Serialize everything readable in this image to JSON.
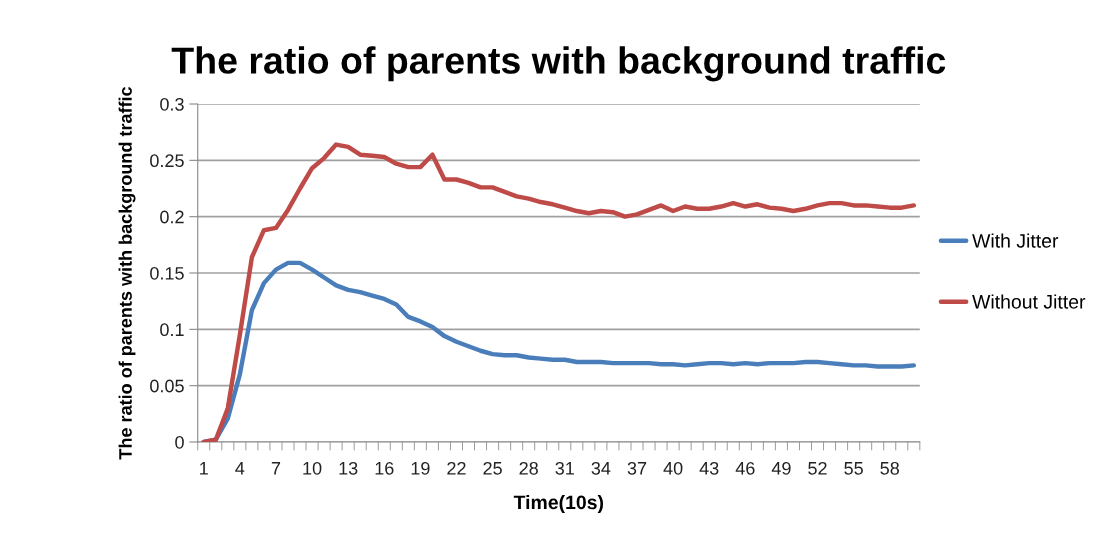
{
  "chart_data": {
    "type": "line",
    "title": "The ratio of parents with background traffic",
    "xlabel": "Time(10s)",
    "ylabel": "The ratio of parents with background traffic",
    "categories": [
      "1",
      null,
      null,
      "4",
      null,
      null,
      "7",
      null,
      null,
      "10",
      null,
      null,
      "13",
      null,
      null,
      "16",
      null,
      null,
      "19",
      null,
      null,
      "22",
      null,
      null,
      "25",
      null,
      null,
      "28",
      null,
      null,
      "31",
      null,
      null,
      "34",
      null,
      null,
      "37",
      null,
      null,
      "40",
      null,
      null,
      "43",
      null,
      null,
      "46",
      null,
      null,
      "49",
      null,
      null,
      "52",
      null,
      null,
      "55",
      null,
      null,
      "58",
      null,
      null
    ],
    "series": [
      {
        "name": "With Jitter",
        "color": "#4a7ebb",
        "values": [
          0,
          0.002,
          0.021,
          0.06,
          0.117,
          0.141,
          0.153,
          0.159,
          0.159,
          0.153,
          0.146,
          0.139,
          0.135,
          0.133,
          0.13,
          0.127,
          0.122,
          0.111,
          0.107,
          0.102,
          0.094,
          0.089,
          0.085,
          0.081,
          0.078,
          0.077,
          0.077,
          0.075,
          0.074,
          0.073,
          0.073,
          0.071,
          0.071,
          0.071,
          0.07,
          0.07,
          0.07,
          0.07,
          0.069,
          0.069,
          0.068,
          0.069,
          0.07,
          0.07,
          0.069,
          0.07,
          0.069,
          0.07,
          0.07,
          0.07,
          0.071,
          0.071,
          0.07,
          0.069,
          0.068,
          0.068,
          0.067,
          0.067,
          0.067,
          0.068
        ]
      },
      {
        "name": "Without Jitter",
        "color": "#be4b48",
        "values": [
          0,
          0.002,
          0.03,
          0.095,
          0.164,
          0.188,
          0.19,
          0.206,
          0.225,
          0.243,
          0.252,
          0.264,
          0.262,
          0.255,
          0.254,
          0.253,
          0.247,
          0.244,
          0.244,
          0.255,
          0.233,
          0.233,
          0.23,
          0.226,
          0.226,
          0.222,
          0.218,
          0.216,
          0.213,
          0.211,
          0.208,
          0.205,
          0.203,
          0.205,
          0.204,
          0.2,
          0.202,
          0.206,
          0.21,
          0.205,
          0.209,
          0.207,
          0.207,
          0.209,
          0.212,
          0.209,
          0.211,
          0.208,
          0.207,
          0.205,
          0.207,
          0.21,
          0.212,
          0.212,
          0.21,
          0.21,
          0.209,
          0.208,
          0.208,
          0.21
        ]
      }
    ],
    "ylim": [
      0,
      0.3
    ],
    "yticks": [
      0,
      0.05,
      0.1,
      0.15,
      0.2,
      0.25,
      0.3
    ],
    "grid": "y",
    "legend": "right",
    "marker": "none",
    "line_style": "solid"
  }
}
